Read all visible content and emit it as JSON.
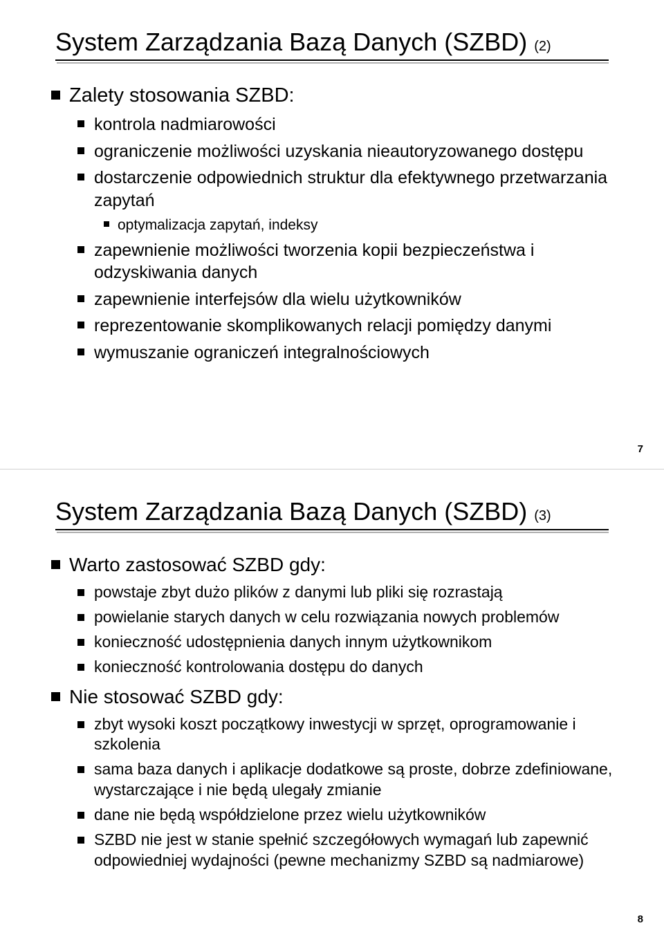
{
  "slide7": {
    "title_main": "System Zarządzania Bazą Danych (SZBD) ",
    "title_sub": "(2)",
    "page_number": "7",
    "l1_1": "Zalety stosowania SZBD:",
    "l2_1": "kontrola nadmiarowości",
    "l2_2": "ograniczenie możliwości uzyskania nieautoryzowanego dostępu",
    "l2_3": "dostarczenie odpowiednich struktur dla efektywnego przetwarzania zapytań",
    "l3_1": "optymalizacja zapytań, indeksy",
    "l2_4": "zapewnienie możliwości tworzenia kopii bezpieczeństwa i odzyskiwania danych",
    "l2_5": "zapewnienie interfejsów dla wielu użytkowników",
    "l2_6": "reprezentowanie skomplikowanych relacji pomiędzy danymi",
    "l2_7": "wymuszanie ograniczeń integralnościowych"
  },
  "slide8": {
    "title_main": "System Zarządzania Bazą Danych (SZBD) ",
    "title_sub": "(3)",
    "page_number": "8",
    "l1_1": "Warto zastosować SZBD gdy:",
    "s1_l2_1": "powstaje zbyt dużo plików z danymi lub pliki się rozrastają",
    "s1_l2_2": "powielanie starych danych w celu rozwiązania nowych problemów",
    "s1_l2_3": "konieczność udostępnienia danych innym użytkownikom",
    "s1_l2_4": "konieczność kontrolowania dostępu do danych",
    "l1_2": "Nie stosować SZBD gdy:",
    "s2_l2_1": "zbyt wysoki koszt początkowy inwestycji w sprzęt, oprogramowanie i szkolenia",
    "s2_l2_2": "sama baza danych i aplikacje dodatkowe są proste, dobrze zdefiniowane, wystarczające i nie będą ulegały zmianie",
    "s2_l2_3": "dane nie będą współdzielone przez wielu użytkowników",
    "s2_l2_4": "SZBD nie jest w stanie spełnić szczegółowych wymagań lub zapewnić odpowiedniej wydajności (pewne mechanizmy SZBD są nadmiarowe)"
  }
}
